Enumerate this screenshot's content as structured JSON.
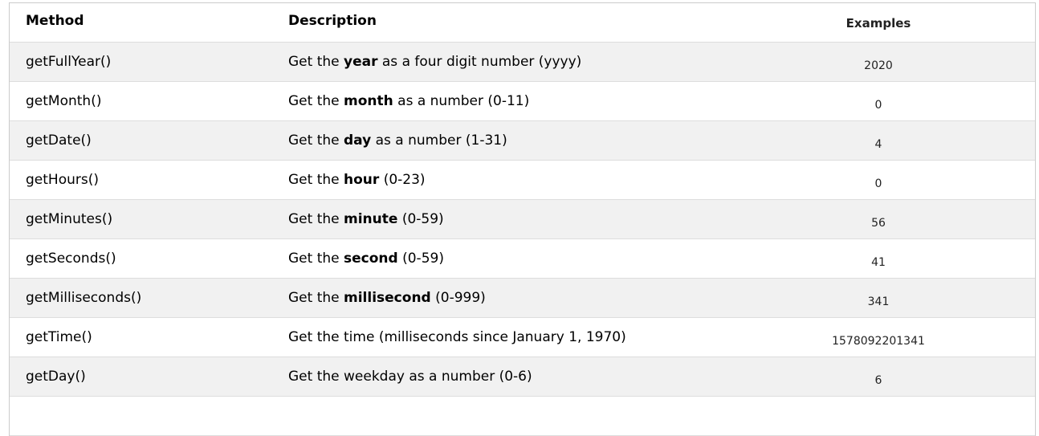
{
  "headers": {
    "method": "Method",
    "description": "Description",
    "examples": "Examples"
  },
  "rows": [
    {
      "method": "getFullYear()",
      "pre": "Get the ",
      "bold": "year",
      "post": " as a four digit number (yyyy)",
      "example": "2020"
    },
    {
      "method": "getMonth()",
      "pre": "Get the ",
      "bold": "month",
      "post": " as a number (0-11)",
      "example": "0"
    },
    {
      "method": "getDate()",
      "pre": "Get the ",
      "bold": "day",
      "post": " as a number (1-31)",
      "example": "4"
    },
    {
      "method": "getHours()",
      "pre": "Get the ",
      "bold": "hour",
      "post": " (0-23)",
      "example": "0"
    },
    {
      "method": "getMinutes()",
      "pre": "Get the ",
      "bold": "minute",
      "post": " (0-59)",
      "example": "56"
    },
    {
      "method": "getSeconds()",
      "pre": "Get the ",
      "bold": "second",
      "post": " (0-59)",
      "example": "41"
    },
    {
      "method": "getMilliseconds()",
      "pre": "Get the ",
      "bold": "millisecond",
      "post": " (0-999)",
      "example": "341"
    },
    {
      "method": "getTime()",
      "pre": "Get the time (milliseconds since January 1, 1970)",
      "bold": "",
      "post": "",
      "example": "1578092201341"
    },
    {
      "method": "getDay()",
      "pre": "Get the weekday as a number (0-6)",
      "bold": "",
      "post": "",
      "example": "6"
    }
  ]
}
